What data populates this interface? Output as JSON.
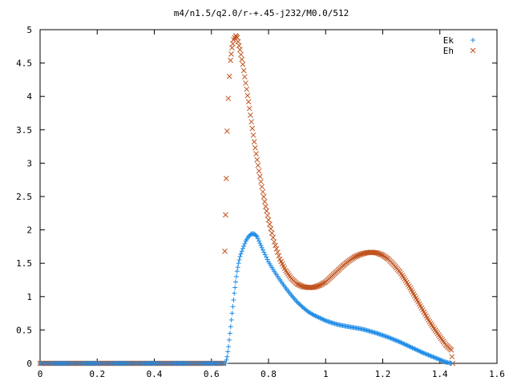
{
  "chart_data": {
    "type": "scatter",
    "title": "m4/n1.5/q2.0/r-+.45-j232/M0.0/512",
    "xlabel": "",
    "ylabel": "",
    "xlim": [
      0,
      1.6
    ],
    "ylim": [
      0,
      5
    ],
    "x_ticks": [
      "0",
      "0.2",
      "0.4",
      "0.6",
      "0.8",
      "1",
      "1.2",
      "1.4",
      "1.6"
    ],
    "y_ticks": [
      "0",
      "0.5",
      "1",
      "1.5",
      "2",
      "2.5",
      "3",
      "3.5",
      "4",
      "4.5",
      "5"
    ],
    "grid": false,
    "legend_position": "top-right",
    "series": [
      {
        "name": "Ek",
        "marker": "plus",
        "color": "#1e8be6",
        "points": [
          [
            0.0,
            0.0
          ],
          [
            0.65,
            0.0
          ],
          [
            0.655,
            0.1
          ],
          [
            0.66,
            0.25
          ],
          [
            0.665,
            0.45
          ],
          [
            0.67,
            0.65
          ],
          [
            0.675,
            0.85
          ],
          [
            0.68,
            1.05
          ],
          [
            0.685,
            1.22
          ],
          [
            0.69,
            1.38
          ],
          [
            0.695,
            1.5
          ],
          [
            0.7,
            1.6
          ],
          [
            0.71,
            1.72
          ],
          [
            0.72,
            1.83
          ],
          [
            0.73,
            1.9
          ],
          [
            0.74,
            1.94
          ],
          [
            0.75,
            1.94
          ],
          [
            0.76,
            1.9
          ],
          [
            0.77,
            1.8
          ],
          [
            0.78,
            1.7
          ],
          [
            0.8,
            1.52
          ],
          [
            0.82,
            1.38
          ],
          [
            0.84,
            1.25
          ],
          [
            0.86,
            1.13
          ],
          [
            0.88,
            1.02
          ],
          [
            0.9,
            0.92
          ],
          [
            0.92,
            0.84
          ],
          [
            0.94,
            0.77
          ],
          [
            0.96,
            0.72
          ],
          [
            0.98,
            0.68
          ],
          [
            1.0,
            0.64
          ],
          [
            1.02,
            0.61
          ],
          [
            1.04,
            0.585
          ],
          [
            1.06,
            0.565
          ],
          [
            1.08,
            0.55
          ],
          [
            1.1,
            0.535
          ],
          [
            1.12,
            0.52
          ],
          [
            1.14,
            0.5
          ],
          [
            1.16,
            0.475
          ],
          [
            1.18,
            0.45
          ],
          [
            1.2,
            0.42
          ],
          [
            1.22,
            0.39
          ],
          [
            1.24,
            0.355
          ],
          [
            1.26,
            0.32
          ],
          [
            1.28,
            0.28
          ],
          [
            1.3,
            0.24
          ],
          [
            1.32,
            0.2
          ],
          [
            1.34,
            0.16
          ],
          [
            1.36,
            0.125
          ],
          [
            1.38,
            0.09
          ],
          [
            1.4,
            0.055
          ],
          [
            1.42,
            0.02
          ],
          [
            1.44,
            0.0
          ]
        ]
      },
      {
        "name": "Eh",
        "marker": "cross",
        "color": "#c0531e",
        "points": [
          [
            0.0,
            0.0
          ],
          [
            0.643,
            0.0
          ],
          [
            0.647,
            1.68
          ],
          [
            0.652,
            2.77
          ],
          [
            0.655,
            3.48
          ],
          [
            0.659,
            3.97
          ],
          [
            0.663,
            4.3
          ],
          [
            0.667,
            4.54
          ],
          [
            0.672,
            4.73
          ],
          [
            0.678,
            4.85
          ],
          [
            0.685,
            4.91
          ],
          [
            0.69,
            4.88
          ],
          [
            0.7,
            4.7
          ],
          [
            0.71,
            4.48
          ],
          [
            0.72,
            4.2
          ],
          [
            0.73,
            3.92
          ],
          [
            0.74,
            3.62
          ],
          [
            0.75,
            3.32
          ],
          [
            0.76,
            3.05
          ],
          [
            0.77,
            2.8
          ],
          [
            0.78,
            2.57
          ],
          [
            0.79,
            2.35
          ],
          [
            0.8,
            2.15
          ],
          [
            0.82,
            1.82
          ],
          [
            0.84,
            1.56
          ],
          [
            0.86,
            1.39
          ],
          [
            0.88,
            1.27
          ],
          [
            0.9,
            1.19
          ],
          [
            0.92,
            1.15
          ],
          [
            0.94,
            1.135
          ],
          [
            0.96,
            1.14
          ],
          [
            0.98,
            1.17
          ],
          [
            1.0,
            1.22
          ],
          [
            1.02,
            1.3
          ],
          [
            1.04,
            1.38
          ],
          [
            1.06,
            1.46
          ],
          [
            1.08,
            1.53
          ],
          [
            1.1,
            1.59
          ],
          [
            1.12,
            1.63
          ],
          [
            1.14,
            1.655
          ],
          [
            1.16,
            1.665
          ],
          [
            1.18,
            1.655
          ],
          [
            1.2,
            1.62
          ],
          [
            1.22,
            1.56
          ],
          [
            1.24,
            1.47
          ],
          [
            1.26,
            1.37
          ],
          [
            1.28,
            1.24
          ],
          [
            1.3,
            1.1
          ],
          [
            1.32,
            0.95
          ],
          [
            1.34,
            0.8
          ],
          [
            1.36,
            0.65
          ],
          [
            1.38,
            0.52
          ],
          [
            1.4,
            0.4
          ],
          [
            1.42,
            0.28
          ],
          [
            1.44,
            0.2
          ],
          [
            1.445,
            0.0
          ]
        ]
      }
    ]
  }
}
